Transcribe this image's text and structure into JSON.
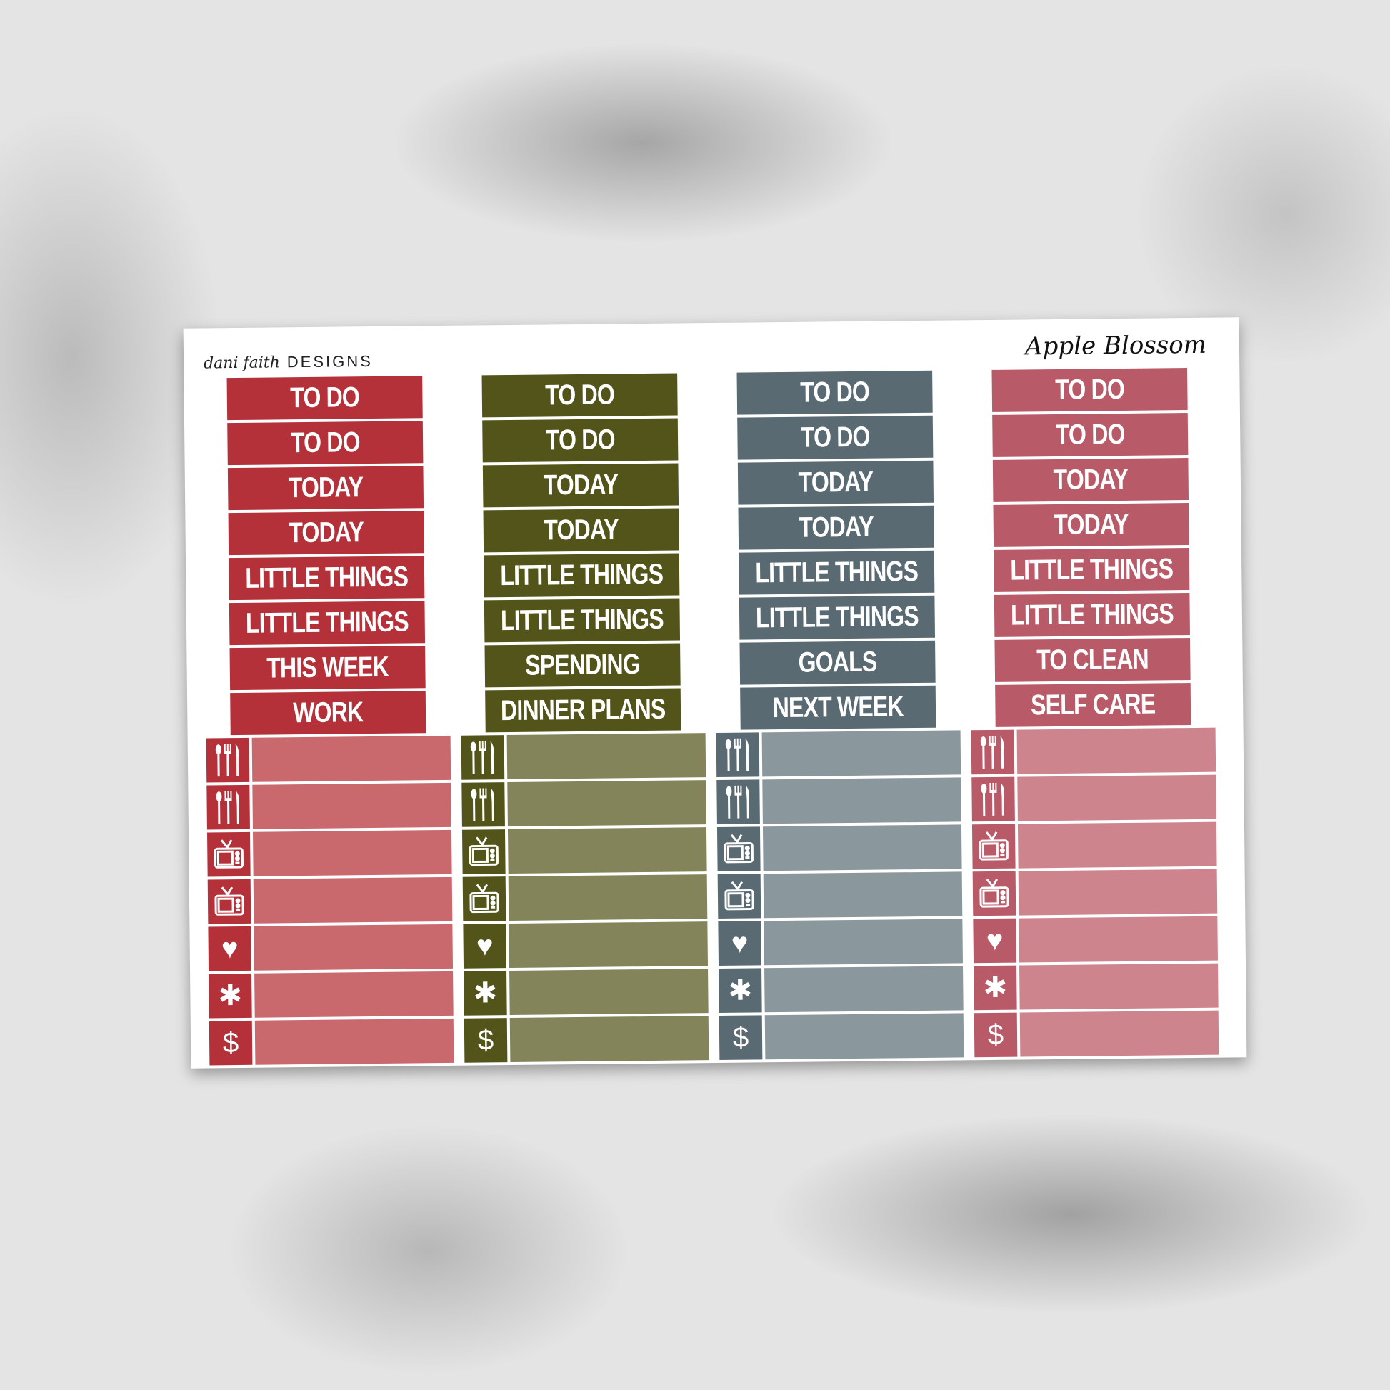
{
  "brand": {
    "script": "dani faith",
    "text": "DESIGNS"
  },
  "title": "Apple Blossom",
  "columns": [
    {
      "dark": "#b5313a",
      "light": "#c9686d",
      "labels": [
        "TO DO",
        "TO DO",
        "TODAY",
        "TODAY",
        "LITTLE THINGS",
        "LITTLE THINGS",
        "THIS WEEK",
        "WORK"
      ]
    },
    {
      "dark": "#525419",
      "light": "#83845a",
      "labels": [
        "TO DO",
        "TO DO",
        "TODAY",
        "TODAY",
        "LITTLE THINGS",
        "LITTLE THINGS",
        "SPENDING",
        "DINNER PLANS"
      ]
    },
    {
      "dark": "#5a6a72",
      "light": "#8a979d",
      "labels": [
        "TO DO",
        "TO DO",
        "TODAY",
        "TODAY",
        "LITTLE THINGS",
        "LITTLE THINGS",
        "GOALS",
        "NEXT WEEK"
      ]
    },
    {
      "dark": "#b95a68",
      "light": "#cd848d",
      "labels": [
        "TO DO",
        "TO DO",
        "TODAY",
        "TODAY",
        "LITTLE THINGS",
        "LITTLE THINGS",
        "TO CLEAN",
        "SELF CARE"
      ]
    }
  ],
  "icons": [
    {
      "name": "utensils-icon",
      "glyph": "🍴"
    },
    {
      "name": "utensils-icon",
      "glyph": "🍴"
    },
    {
      "name": "tv-icon",
      "glyph": "📺"
    },
    {
      "name": "tv-icon",
      "glyph": "📺"
    },
    {
      "name": "heart-icon",
      "glyph": "♥"
    },
    {
      "name": "asterisk-icon",
      "glyph": "✱"
    },
    {
      "name": "dollar-icon",
      "glyph": "$"
    }
  ]
}
